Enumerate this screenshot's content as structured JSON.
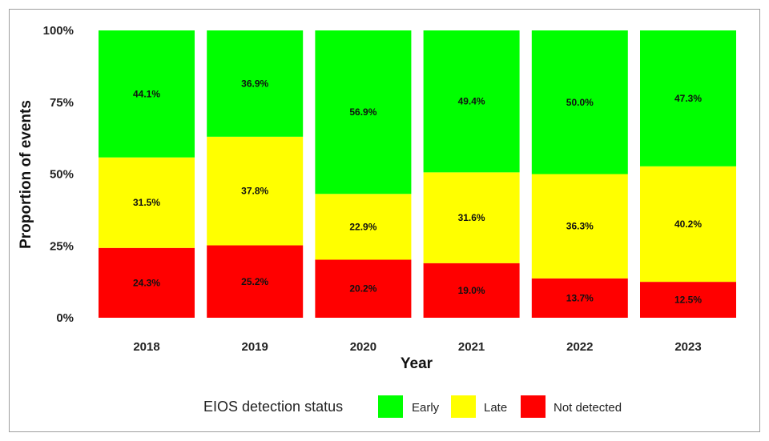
{
  "chart_data": {
    "type": "bar",
    "stacked": true,
    "percent": true,
    "categories": [
      "2018",
      "2019",
      "2020",
      "2021",
      "2022",
      "2023"
    ],
    "series": [
      {
        "name": "Not detected",
        "color": "#ff0000",
        "values": [
          24.3,
          25.2,
          20.2,
          19.0,
          13.7,
          12.5
        ],
        "labels": [
          "24.3%",
          "25.2%",
          "20.2%",
          "19.0%",
          "13.7%",
          "12.5%"
        ]
      },
      {
        "name": "Late",
        "color": "#ffff00",
        "values": [
          31.5,
          37.8,
          22.9,
          31.6,
          36.3,
          40.2
        ],
        "labels": [
          "31.5%",
          "37.8%",
          "22.9%",
          "31.6%",
          "36.3%",
          "40.2%"
        ]
      },
      {
        "name": "Early",
        "color": "#00ff00",
        "values": [
          44.1,
          36.9,
          56.9,
          49.4,
          50.0,
          47.3
        ],
        "labels": [
          "44.1%",
          "36.9%",
          "56.9%",
          "49.4%",
          "50.0%",
          "47.3%"
        ]
      }
    ],
    "xlabel": "Year",
    "ylabel": "Proportion of events",
    "ylim": [
      0,
      100
    ],
    "yticks": [
      "0%",
      "25%",
      "50%",
      "75%",
      "100%"
    ],
    "grid": false,
    "legend": {
      "title": "EIOS detection status",
      "placement": "bottom",
      "order": [
        "Early",
        "Late",
        "Not detected"
      ]
    }
  }
}
